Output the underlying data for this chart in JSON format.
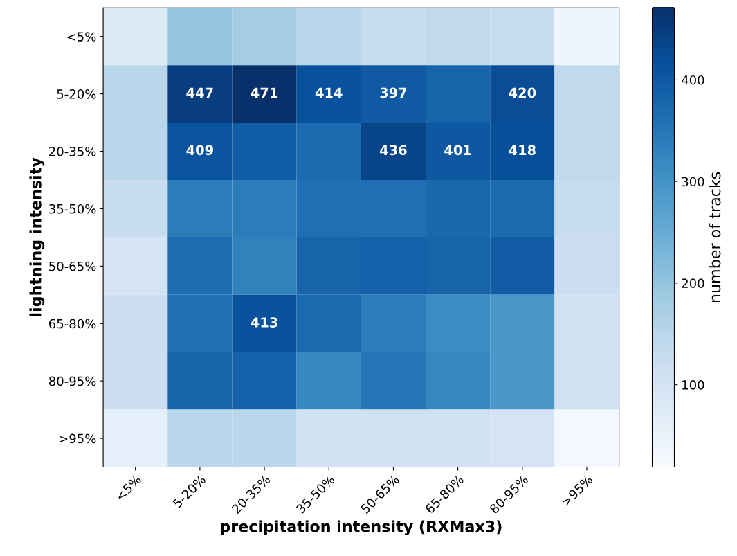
{
  "chart_data": {
    "type": "heatmap",
    "xlabel": "precipitation intensity (RXMax3)",
    "ylabel": "lightning intensity",
    "clabel": "number of tracks",
    "categories": [
      "<5%",
      "5-20%",
      "20-35%",
      "35-50%",
      "50-65%",
      "65-80%",
      "80-95%",
      ">95%"
    ],
    "y_categories": [
      "<5%",
      "5-20%",
      "20-35%",
      "35-50%",
      "50-65%",
      "65-80%",
      "80-95%",
      ">95%"
    ],
    "cells": [
      [
        80,
        200,
        180,
        150,
        130,
        140,
        130,
        40
      ],
      [
        150,
        447,
        471,
        414,
        397,
        380,
        420,
        140
      ],
      [
        150,
        409,
        390,
        370,
        436,
        401,
        418,
        140
      ],
      [
        130,
        340,
        340,
        360,
        360,
        375,
        370,
        130
      ],
      [
        100,
        365,
        330,
        380,
        385,
        380,
        395,
        120
      ],
      [
        120,
        360,
        413,
        370,
        340,
        310,
        290,
        110
      ],
      [
        120,
        380,
        385,
        320,
        350,
        320,
        290,
        110
      ],
      [
        60,
        150,
        150,
        110,
        110,
        110,
        100,
        30
      ]
    ],
    "cell_labels": [
      [
        null,
        null,
        null,
        null,
        null,
        null,
        null,
        null
      ],
      [
        null,
        "447",
        "471",
        "414",
        "397",
        null,
        "420",
        null
      ],
      [
        null,
        "409",
        null,
        null,
        "436",
        "401",
        "418",
        null
      ],
      [
        null,
        null,
        null,
        null,
        null,
        null,
        null,
        null
      ],
      [
        null,
        null,
        null,
        null,
        null,
        null,
        null,
        null
      ],
      [
        null,
        null,
        "413",
        null,
        null,
        null,
        null,
        null
      ],
      [
        null,
        null,
        null,
        null,
        null,
        null,
        null,
        null
      ],
      [
        null,
        null,
        null,
        null,
        null,
        null,
        null,
        null
      ]
    ],
    "clim": [
      19,
      471
    ],
    "cticks": [
      100,
      200,
      300,
      400
    ]
  }
}
